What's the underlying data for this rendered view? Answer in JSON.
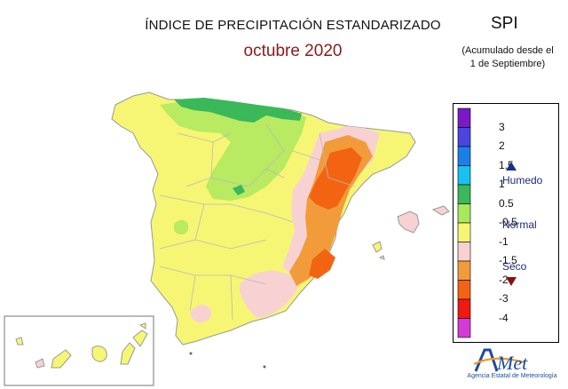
{
  "title": "ÍNDICE DE PRECIPITACIÓN ESTANDARIZADO",
  "subtitle": "octubre 2020",
  "index_name": "SPI",
  "accumulation_line1": "(Acumulado desde el",
  "accumulation_line2": "1 de Septiembre)",
  "legend": {
    "colors": [
      "#7b19c4",
      "#4b45e0",
      "#1b7fe8",
      "#18c1ee",
      "#3ab85a",
      "#a8e85a",
      "#f6f674",
      "#f8d2d2",
      "#f29b3a",
      "#f26412",
      "#f01a12",
      "#d43ad6"
    ],
    "ticks": [
      "3",
      "2",
      "1.5",
      "1",
      "0.5",
      "-0.5",
      "-1",
      "-1.5",
      "-2",
      "-3",
      "-4"
    ],
    "humid_label": "Humedo",
    "normal_label": "Normal",
    "dry_label": "Seco",
    "humid_marker_color": "#1b2e8c",
    "dry_marker_color": "#8b1010"
  },
  "logo": {
    "name": "AEMet",
    "caption": "Agencia Estatal de Meteorología"
  }
}
